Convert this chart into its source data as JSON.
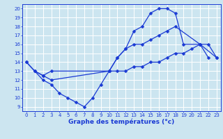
{
  "bg_color": "#cce5f0",
  "line_color": "#1a3ad4",
  "grid_color": "#ffffff",
  "ylabel_ticks": [
    9,
    10,
    11,
    12,
    13,
    14,
    15,
    16,
    17,
    18,
    19,
    20
  ],
  "xlabel_ticks": [
    0,
    1,
    2,
    3,
    4,
    5,
    6,
    7,
    8,
    9,
    10,
    11,
    12,
    13,
    14,
    15,
    16,
    17,
    18,
    19,
    20,
    21,
    22,
    23
  ],
  "xlabel": "Graphe des températures (°c)",
  "xlim": [
    -0.5,
    23.5
  ],
  "ylim": [
    8.5,
    20.5
  ],
  "line1_x": [
    0,
    1,
    2,
    3,
    10,
    11,
    12,
    13,
    14,
    15,
    16,
    17,
    18,
    19,
    21,
    22
  ],
  "line1_y": [
    14,
    13,
    12.5,
    12,
    13,
    14.5,
    15.5,
    17.5,
    18,
    19.5,
    20,
    20,
    19.5,
    16,
    16,
    14.5
  ],
  "line2_x": [
    0,
    2,
    3,
    4,
    5,
    6,
    7,
    8,
    9,
    10,
    11,
    12,
    13,
    14,
    15,
    16,
    17,
    18,
    21,
    23
  ],
  "line2_y": [
    14,
    12,
    11.5,
    10.5,
    10,
    9.5,
    9,
    10,
    11.5,
    13,
    14.5,
    15.5,
    16,
    16,
    16.5,
    17,
    17.5,
    18,
    16,
    14.5
  ],
  "line3_x": [
    1,
    2,
    3,
    10,
    11,
    12,
    13,
    14,
    15,
    16,
    17,
    18,
    19,
    20,
    21,
    22,
    23
  ],
  "line3_y": [
    13,
    12.5,
    13,
    13,
    13,
    13,
    13.5,
    13.5,
    14,
    14,
    14.5,
    15,
    15,
    15.5,
    16,
    16,
    14.5
  ],
  "tick_fontsize": 5,
  "xlabel_fontsize": 6.5,
  "marker_size": 2.5,
  "linewidth": 0.9
}
